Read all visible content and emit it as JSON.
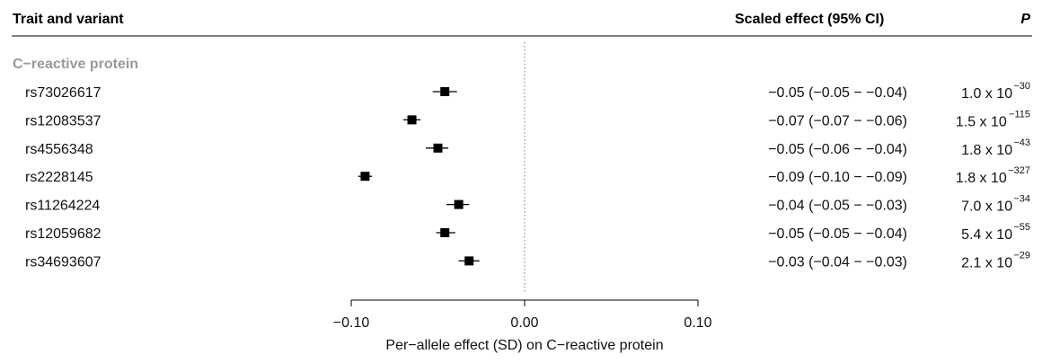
{
  "header": {
    "trait_variant": "Trait and variant",
    "effect": "Scaled effect (95% CI)",
    "p": "P"
  },
  "chart_data": {
    "type": "forest",
    "group_label": "C−reactive protein",
    "xlabel": "Per−allele effect (SD) on C−reactive protein",
    "xlim": [
      -0.1,
      0.1
    ],
    "xticks": [
      -0.1,
      0.0,
      0.1
    ],
    "xtick_labels": [
      "−0.10",
      "0.00",
      "0.10"
    ],
    "reference_line": 0.0,
    "rows": [
      {
        "variant": "rs73026617",
        "estimate": -0.046,
        "lower": -0.053,
        "upper": -0.039,
        "ci_text": "−0.05 (−0.05 − −0.04)",
        "p_mantissa": "1.0 x 10",
        "p_exponent": "−30"
      },
      {
        "variant": "rs12083537",
        "estimate": -0.065,
        "lower": -0.07,
        "upper": -0.06,
        "ci_text": "−0.07 (−0.07 − −0.06)",
        "p_mantissa": "1.5 x 10",
        "p_exponent": "−115"
      },
      {
        "variant": "rs4556348",
        "estimate": -0.05,
        "lower": -0.057,
        "upper": -0.044,
        "ci_text": "−0.05 (−0.06 − −0.04)",
        "p_mantissa": "1.8 x 10",
        "p_exponent": "−43"
      },
      {
        "variant": "rs2228145",
        "estimate": -0.092,
        "lower": -0.096,
        "upper": -0.088,
        "ci_text": "−0.09 (−0.10 − −0.09)",
        "p_mantissa": "1.8 x 10",
        "p_exponent": "−327"
      },
      {
        "variant": "rs11264224",
        "estimate": -0.038,
        "lower": -0.045,
        "upper": -0.032,
        "ci_text": "−0.04 (−0.05 − −0.03)",
        "p_mantissa": "7.0 x 10",
        "p_exponent": "−34"
      },
      {
        "variant": "rs12059682",
        "estimate": -0.046,
        "lower": -0.051,
        "upper": -0.04,
        "ci_text": "−0.05 (−0.05 − −0.04)",
        "p_mantissa": "5.4 x 10",
        "p_exponent": "−55"
      },
      {
        "variant": "rs34693607",
        "estimate": -0.032,
        "lower": -0.038,
        "upper": -0.026,
        "ci_text": "−0.03 (−0.04 − −0.03)",
        "p_mantissa": "2.1 x 10",
        "p_exponent": "−29"
      }
    ]
  }
}
